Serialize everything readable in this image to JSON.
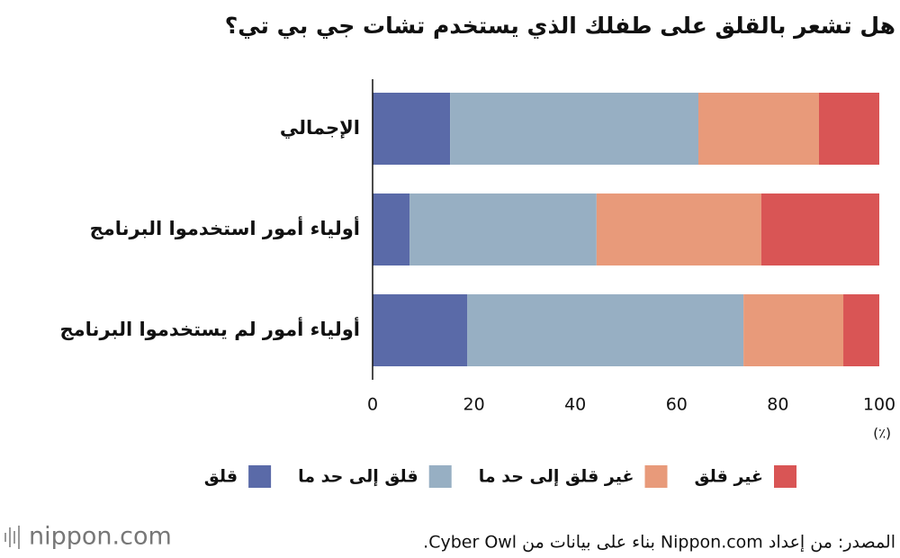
{
  "chart_data": {
    "type": "stacked-barh",
    "title": "هل تشعر بالقلق على طفلك الذي يستخدم تشات جي بي تي؟",
    "categories": [
      "الإجمالي",
      "أولياء أمور استخدموا البرنامج",
      "أولياء أمور لم يستخدموا البرنامج"
    ],
    "series": [
      {
        "name": "قلق",
        "color": "#5a6aa8",
        "values": [
          15.3,
          7.3,
          18.7
        ]
      },
      {
        "name": "قلق إلى حد ما",
        "color": "#97afc3",
        "values": [
          49.0,
          36.9,
          54.5
        ]
      },
      {
        "name": "غير قلق إلى حد ما",
        "color": "#e89a7a",
        "values": [
          23.8,
          32.5,
          19.7
        ]
      },
      {
        "name": "غير قلق",
        "color": "#d95555",
        "values": [
          11.9,
          23.3,
          7.1
        ]
      }
    ],
    "xlim": [
      0,
      100
    ],
    "xticks": [
      0,
      20,
      40,
      60,
      80,
      100
    ],
    "unit": "(٪)",
    "source": "المصدر: من إعداد Nippon.com بناء على بيانات من Cyber Owl.",
    "logo": "nippon.com"
  }
}
